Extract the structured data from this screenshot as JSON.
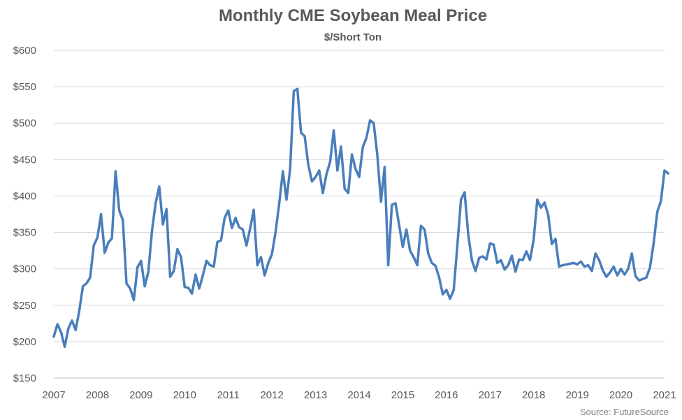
{
  "chart_data": {
    "type": "line",
    "title": "Monthly CME Soybean Meal Price",
    "subtitle": "$/Short Ton",
    "source": "Source: FutureSource",
    "xlabel": "",
    "ylabel": "",
    "xlim": [
      2007,
      2021
    ],
    "ylim": [
      150,
      600
    ],
    "ytick_step": 50,
    "yticks": [
      "$150",
      "$200",
      "$250",
      "$300",
      "$350",
      "$400",
      "$450",
      "$500",
      "$550",
      "$600"
    ],
    "xticks": [
      "2007",
      "2008",
      "2009",
      "2010",
      "2011",
      "2012",
      "2013",
      "2014",
      "2015",
      "2016",
      "2017",
      "2018",
      "2019",
      "2020",
      "2021"
    ],
    "grid": true,
    "legend": "none",
    "color": "#4a7ebb",
    "series": [
      {
        "start_year": 2007,
        "points_per_year": 12,
        "values": [
          207,
          224,
          213,
          193,
          218,
          229,
          216,
          242,
          276,
          280,
          288,
          332,
          343,
          375,
          322,
          336,
          342,
          434,
          380,
          367,
          280,
          273,
          257,
          302,
          311,
          276,
          296,
          352,
          390,
          413,
          361,
          382,
          289,
          297,
          327,
          316,
          275,
          274,
          266,
          292,
          273,
          291,
          311,
          305,
          303,
          337,
          339,
          370,
          380,
          356,
          370,
          357,
          354,
          332,
          355,
          381,
          305,
          316,
          291,
          308,
          320,
          350,
          389,
          434,
          395,
          437,
          544,
          547,
          487,
          482,
          443,
          420,
          426,
          435,
          404,
          430,
          447,
          490,
          435,
          468,
          410,
          404,
          457,
          437,
          426,
          467,
          480,
          504,
          500,
          456,
          392,
          440,
          305,
          388,
          390,
          360,
          330,
          354,
          325,
          316,
          305,
          359,
          354,
          321,
          308,
          304,
          288,
          265,
          271,
          259,
          271,
          332,
          395,
          405,
          347,
          312,
          297,
          315,
          317,
          313,
          335,
          333,
          308,
          312,
          299,
          305,
          318,
          296,
          313,
          312,
          324,
          312,
          340,
          395,
          384,
          391,
          374,
          334,
          341,
          303,
          305,
          306,
          307,
          308,
          306,
          310,
          303,
          305,
          297,
          321,
          312,
          298,
          289,
          295,
          303,
          291,
          300,
          292,
          300,
          321,
          290,
          284,
          286,
          288,
          302,
          335,
          378,
          393,
          435,
          431
        ]
      }
    ]
  }
}
